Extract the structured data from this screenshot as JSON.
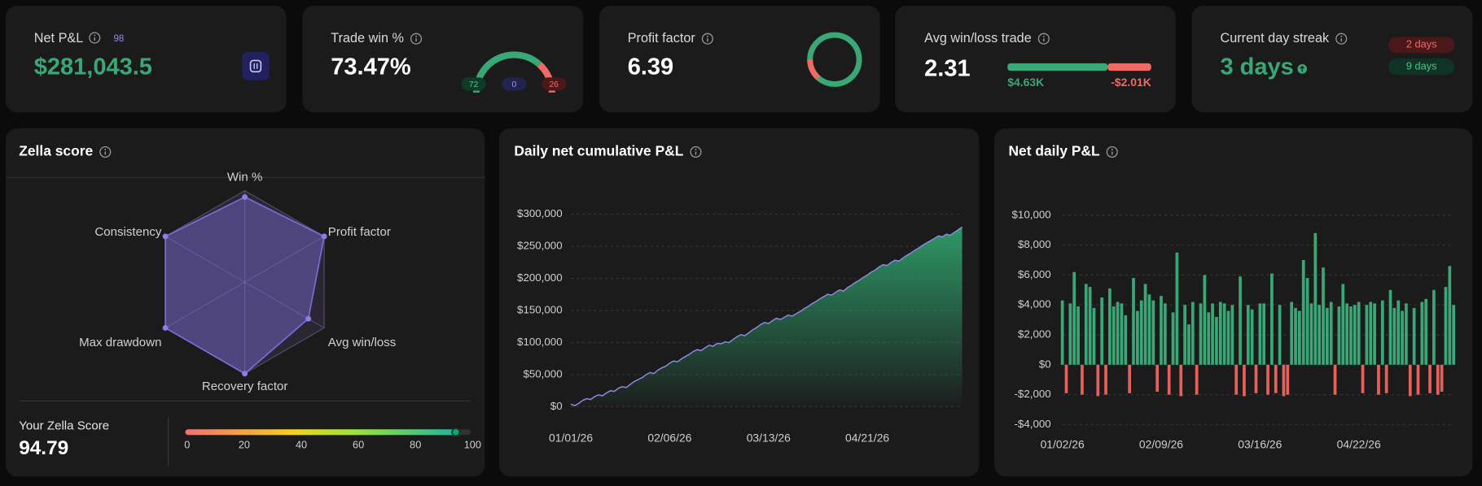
{
  "cards": {
    "net_pnl": {
      "title": "Net P&L",
      "count": 98,
      "value": "$281,043.5"
    },
    "win_rate": {
      "title": "Trade win %",
      "value": "73.47%",
      "wins": 72,
      "breakeven": 0,
      "losses": 26
    },
    "profit_factor": {
      "title": "Profit factor",
      "value": 6.39
    },
    "avg_win_loss": {
      "title": "Avg win/loss trade",
      "value": 2.31,
      "avg_win": {
        "value": 4630,
        "label": "$4.63K"
      },
      "avg_loss": {
        "value": -2010,
        "label": "-$2.01K"
      }
    },
    "streak": {
      "title": "Current day streak",
      "value": "3 days",
      "losing_days": "2 days",
      "winning_days": "9 days"
    }
  },
  "chart_data": [
    {
      "type": "radar",
      "title": "Zella score",
      "categories": [
        "Win %",
        "Profit factor",
        "Avg win/loss",
        "Recovery factor",
        "Max drawdown",
        "Consistency"
      ],
      "values": [
        93,
        100,
        80,
        100,
        100,
        100
      ],
      "ylim": [
        0,
        100
      ],
      "color": "#7b6ad6"
    },
    {
      "type": "area",
      "title": "Daily net cumulative P&L",
      "categories": [
        "01/01/26",
        null,
        null,
        null,
        null,
        null,
        null,
        null,
        null,
        null,
        null,
        null,
        null,
        null,
        null,
        null,
        null,
        null,
        null,
        null,
        null,
        null,
        null,
        null,
        null,
        "02/06/26",
        null,
        null,
        null,
        null,
        null,
        null,
        null,
        null,
        null,
        null,
        null,
        null,
        null,
        null,
        null,
        null,
        null,
        null,
        null,
        null,
        null,
        null,
        null,
        null,
        "03/13/26",
        null,
        null,
        null,
        null,
        null,
        null,
        null,
        null,
        null,
        null,
        null,
        null,
        null,
        null,
        null,
        null,
        null,
        null,
        null,
        null,
        null,
        null,
        null,
        null,
        "04/21/26",
        null,
        null,
        null,
        null,
        null,
        null,
        null,
        null,
        null,
        null,
        null,
        null,
        null,
        null,
        null,
        null,
        null,
        null,
        null,
        null,
        null,
        null,
        null,
        null
      ],
      "values": [
        3800,
        1500,
        5200,
        9800,
        12500,
        11200,
        15600,
        18400,
        16900,
        21300,
        24800,
        23900,
        28600,
        31200,
        29800,
        34500,
        38900,
        42300,
        45100,
        49800,
        53200,
        51600,
        56900,
        60400,
        63100,
        67800,
        71200,
        69900,
        74600,
        78300,
        81700,
        86200,
        88900,
        87400,
        92100,
        95800,
        94200,
        98700,
        97900,
        101200,
        99800,
        104500,
        108900,
        112300,
        110700,
        115200,
        119800,
        123400,
        127900,
        131200,
        129600,
        134100,
        137800,
        135900,
        139400,
        142800,
        141200,
        144900,
        148300,
        152700,
        156100,
        160400,
        163900,
        168200,
        171600,
        175300,
        173800,
        178400,
        182100,
        180200,
        185600,
        189300,
        193800,
        197200,
        201600,
        205300,
        209700,
        213200,
        217900,
        221400,
        220100,
        224800,
        228300,
        226900,
        231500,
        235900,
        239400,
        243800,
        247100,
        251600,
        255200,
        258700,
        262400,
        266100,
        264800,
        268900,
        267300,
        271600,
        275800,
        280200
      ],
      "ylim": [
        0,
        300000
      ],
      "yticks": [
        {
          "value": 0,
          "label": "$0"
        },
        {
          "value": 50000,
          "label": "$50,000"
        },
        {
          "value": 100000,
          "label": "$100,000"
        },
        {
          "value": 150000,
          "label": "$150,000"
        },
        {
          "value": 200000,
          "label": "$200,000"
        },
        {
          "value": 250000,
          "label": "$250,000"
        },
        {
          "value": 300000,
          "label": "$300,000"
        }
      ],
      "color": "#2f9e6a",
      "line_color": "#8f86e0",
      "grid": true
    },
    {
      "type": "bar",
      "title": "Net daily P&L",
      "categories": [
        "01/02/26",
        null,
        null,
        null,
        null,
        null,
        null,
        null,
        null,
        null,
        null,
        null,
        null,
        null,
        null,
        null,
        null,
        null,
        null,
        null,
        null,
        null,
        null,
        null,
        null,
        "02/09/26",
        null,
        null,
        null,
        null,
        null,
        null,
        null,
        null,
        null,
        null,
        null,
        null,
        null,
        null,
        null,
        null,
        null,
        null,
        null,
        null,
        null,
        null,
        null,
        null,
        "03/16/26",
        null,
        null,
        null,
        null,
        null,
        null,
        null,
        null,
        null,
        null,
        null,
        null,
        null,
        null,
        null,
        null,
        null,
        null,
        null,
        null,
        null,
        null,
        null,
        null,
        "04/22/26",
        null,
        null,
        null,
        null,
        null,
        null,
        null,
        null,
        null,
        null,
        null,
        null,
        null,
        null,
        null,
        null,
        null,
        null,
        null,
        null,
        null,
        null,
        null,
        null
      ],
      "values": [
        4300,
        -1900,
        4100,
        6200,
        3900,
        -2000,
        5400,
        5200,
        3800,
        -2100,
        4500,
        -2000,
        5100,
        3900,
        4200,
        4100,
        3300,
        -1900,
        5800,
        3600,
        4300,
        5400,
        4700,
        4300,
        -1800,
        4600,
        4100,
        -2000,
        3500,
        7500,
        -2100,
        4000,
        2700,
        4200,
        -2000,
        4100,
        6000,
        3500,
        4100,
        3200,
        4200,
        4100,
        3600,
        4000,
        -2000,
        5900,
        -2100,
        4000,
        3700,
        -1900,
        4100,
        4100,
        -2000,
        6100,
        -1900,
        4000,
        -2100,
        -2000,
        4200,
        3800,
        3600,
        7000,
        5800,
        4100,
        8800,
        4000,
        6500,
        3800,
        4200,
        -2000,
        3900,
        5400,
        4100,
        3900,
        4000,
        4200,
        -1900,
        4000,
        4200,
        4100,
        -2000,
        4300,
        -1900,
        5000,
        3800,
        4300,
        3600,
        4100,
        -2100,
        3800,
        -2000,
        4200,
        4400,
        -1900,
        5000,
        -2000,
        -1800,
        5200,
        6600,
        4000
      ],
      "ylim": [
        -4000,
        10000
      ],
      "yticks": [
        {
          "value": -4000,
          "label": "-$4,000"
        },
        {
          "value": -2000,
          "label": "-$2,000"
        },
        {
          "value": 0,
          "label": "$0"
        },
        {
          "value": 2000,
          "label": "$2,000"
        },
        {
          "value": 4000,
          "label": "$4,000"
        },
        {
          "value": 6000,
          "label": "$6,000"
        },
        {
          "value": 8000,
          "label": "$8,000"
        },
        {
          "value": 10000,
          "label": "$10,000"
        }
      ],
      "positive_color": "#3aa876",
      "negative_color": "#e8605a",
      "grid": true
    },
    {
      "type": "progress",
      "title": "Your Zella Score",
      "value": 94.79,
      "xlim": [
        0,
        100
      ],
      "xticks": [
        0,
        20,
        40,
        60,
        80,
        100
      ]
    }
  ]
}
